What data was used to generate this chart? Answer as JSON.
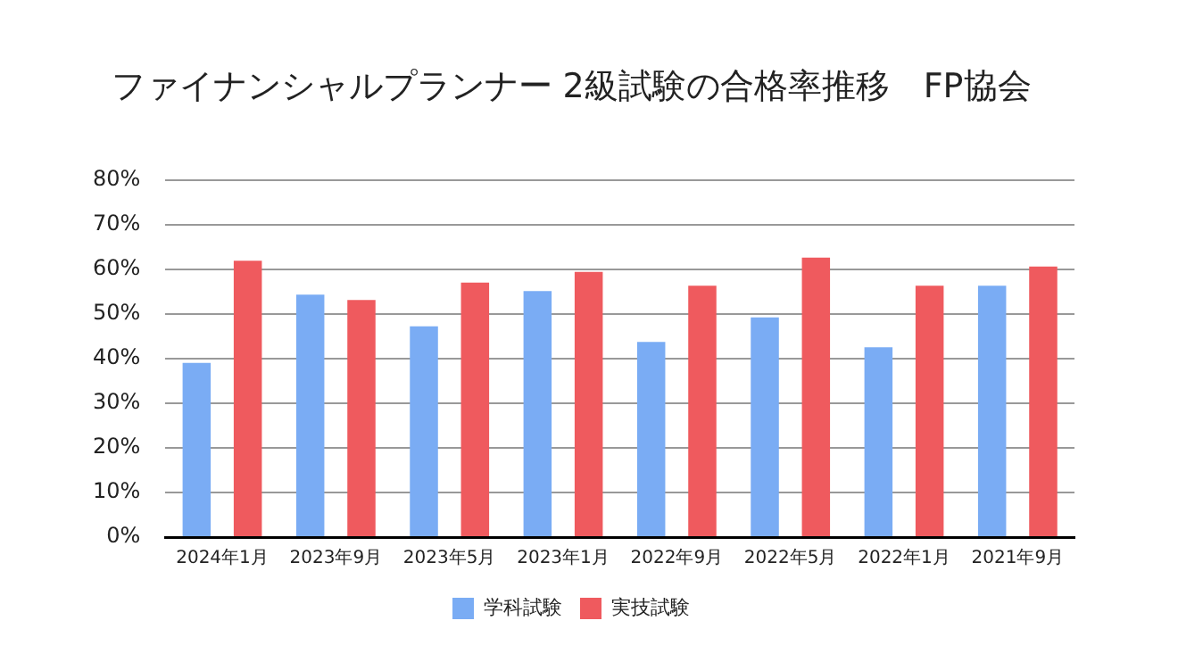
{
  "chart_data": {
    "type": "bar",
    "title": "ファイナンシャルプランナー 2級試験の合格率推移　FP協会",
    "categories": [
      "2024年1月",
      "2023年9月",
      "2023年5月",
      "2023年1月",
      "2022年9月",
      "2022年5月",
      "2022年1月",
      "2021年9月"
    ],
    "series": [
      {
        "name": "学科試験",
        "color": "#7aacf4",
        "values": [
          39.0,
          54.3,
          47.2,
          55.1,
          43.7,
          49.2,
          42.5,
          56.3
        ]
      },
      {
        "name": "実技試験",
        "color": "#ef5a5e",
        "values": [
          61.9,
          53.1,
          57.0,
          59.4,
          56.3,
          62.6,
          56.3,
          60.6
        ]
      }
    ],
    "ylim": [
      0,
      80
    ],
    "yticks": [
      {
        "value": 0,
        "label": "0%"
      },
      {
        "value": 10,
        "label": "10%"
      },
      {
        "value": 20,
        "label": "20%"
      },
      {
        "value": 30,
        "label": "30%"
      },
      {
        "value": 40,
        "label": "40%"
      },
      {
        "value": 50,
        "label": "50%"
      },
      {
        "value": 60,
        "label": "60%"
      },
      {
        "value": 70,
        "label": "70%"
      },
      {
        "value": 80,
        "label": "80%"
      }
    ],
    "grid": "y",
    "legend": "bottom"
  }
}
